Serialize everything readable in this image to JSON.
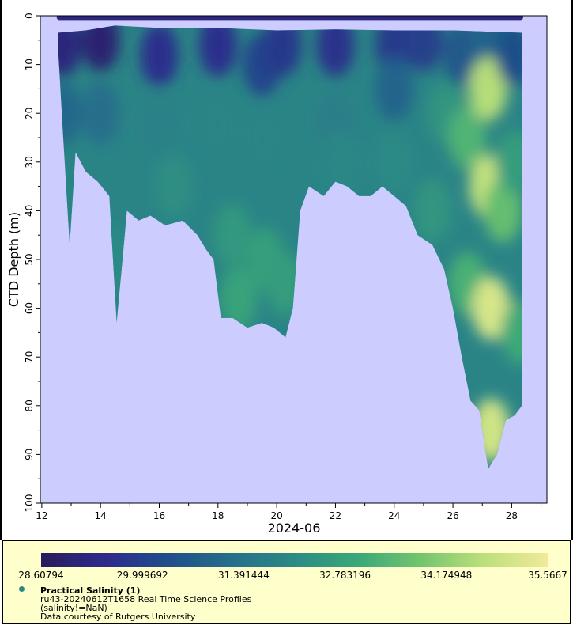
{
  "chart_data": {
    "type": "scatter",
    "ylabel": "CTD Depth (m)",
    "xlabel": "2024-06",
    "x_ticks": [
      "12",
      "14",
      "16",
      "18",
      "20",
      "22",
      "24",
      "26",
      "28"
    ],
    "y_ticks": [
      "0",
      "10",
      "20",
      "30",
      "40",
      "50",
      "60",
      "70",
      "80",
      "90",
      "100"
    ],
    "xlim": [
      11.95,
      29.2
    ],
    "ylim": [
      0,
      100
    ],
    "y_reversed": true,
    "plot_background": "#ccccff",
    "colorbar": {
      "variable": "Practical Salinity",
      "range": [
        28.60794,
        35.5667
      ],
      "tick_labels": [
        "28.60794",
        "29.999692",
        "31.391444",
        "32.783196",
        "34.174948",
        "35.5667"
      ],
      "colors": [
        "#281c5a",
        "#2e2a8c",
        "#1f4e8a",
        "#256f8b",
        "#2c8a85",
        "#3aa878",
        "#74c56e",
        "#bde07a",
        "#f0ea9a"
      ]
    },
    "profile_bottom_depth": [
      [
        12.55,
        6
      ],
      [
        12.75,
        27
      ],
      [
        12.95,
        47
      ],
      [
        13.15,
        28
      ],
      [
        13.5,
        32
      ],
      [
        13.9,
        34
      ],
      [
        14.3,
        37
      ],
      [
        14.55,
        63
      ],
      [
        14.9,
        40
      ],
      [
        15.3,
        42
      ],
      [
        15.7,
        41
      ],
      [
        16.2,
        43
      ],
      [
        16.8,
        42
      ],
      [
        17.3,
        45
      ],
      [
        17.6,
        48
      ],
      [
        17.85,
        50
      ],
      [
        18.1,
        62
      ],
      [
        18.5,
        62
      ],
      [
        19.0,
        64
      ],
      [
        19.5,
        63
      ],
      [
        19.9,
        64
      ],
      [
        20.3,
        66
      ],
      [
        20.55,
        60
      ],
      [
        20.8,
        40
      ],
      [
        21.1,
        35
      ],
      [
        21.6,
        37
      ],
      [
        22.0,
        34
      ],
      [
        22.4,
        35
      ],
      [
        22.8,
        37
      ],
      [
        23.2,
        37
      ],
      [
        23.6,
        35
      ],
      [
        24.0,
        37
      ],
      [
        24.4,
        39
      ],
      [
        24.8,
        45
      ],
      [
        25.3,
        47
      ],
      [
        25.7,
        52
      ],
      [
        26.0,
        60
      ],
      [
        26.3,
        70
      ],
      [
        26.6,
        79
      ],
      [
        26.9,
        81
      ],
      [
        27.2,
        93
      ],
      [
        27.5,
        90
      ],
      [
        27.8,
        83
      ],
      [
        28.1,
        82
      ],
      [
        28.35,
        80
      ]
    ],
    "profile_top_depth": [
      [
        12.55,
        3.5
      ],
      [
        13.5,
        3
      ],
      [
        14.5,
        2
      ],
      [
        16,
        2.5
      ],
      [
        18,
        2.5
      ],
      [
        20,
        3
      ],
      [
        22,
        2.8
      ],
      [
        24,
        3
      ],
      [
        26,
        3
      ],
      [
        28.35,
        3.5
      ]
    ],
    "surface_depth": 0.3,
    "surface_x_range": [
      12.6,
      28.3
    ],
    "salinity_points": [
      [
        12.7,
        6,
        29.2
      ],
      [
        12.7,
        20,
        31.0
      ],
      [
        12.9,
        40,
        31.9
      ],
      [
        14.0,
        5,
        29.0
      ],
      [
        14.0,
        20,
        31.2
      ],
      [
        14.6,
        50,
        32.1
      ],
      [
        16.0,
        8,
        29.6
      ],
      [
        16.0,
        22,
        31.8
      ],
      [
        16.5,
        35,
        32.2
      ],
      [
        18.0,
        6,
        29.6
      ],
      [
        18.0,
        22,
        31.9
      ],
      [
        18.5,
        45,
        32.5
      ],
      [
        18.7,
        58,
        32.8
      ],
      [
        19.5,
        10,
        30.1
      ],
      [
        19.5,
        25,
        31.9
      ],
      [
        19.6,
        50,
        32.7
      ],
      [
        20.2,
        6,
        29.8
      ],
      [
        20.3,
        55,
        32.6
      ],
      [
        22.0,
        6,
        29.7
      ],
      [
        22.0,
        22,
        31.7
      ],
      [
        22.2,
        30,
        32.0
      ],
      [
        24.0,
        6,
        29.9
      ],
      [
        24.0,
        15,
        30.9
      ],
      [
        24.0,
        30,
        32.1
      ],
      [
        25.0,
        5,
        30.0
      ],
      [
        25.3,
        40,
        32.4
      ],
      [
        25.8,
        20,
        32.4
      ],
      [
        26.3,
        8,
        30.6
      ],
      [
        26.5,
        25,
        33.3
      ],
      [
        26.5,
        55,
        33.2
      ],
      [
        27.2,
        5,
        30.9
      ],
      [
        27.2,
        15,
        34.6
      ],
      [
        27.2,
        35,
        34.8
      ],
      [
        27.3,
        60,
        35.1
      ],
      [
        27.3,
        85,
        35.0
      ],
      [
        27.7,
        40,
        33.6
      ],
      [
        28.1,
        8,
        30.4
      ],
      [
        28.1,
        30,
        32.6
      ],
      [
        28.3,
        65,
        33.0
      ]
    ]
  },
  "legend": {
    "title": "Practical Salinity (1)",
    "line2": "ru43-20240612T1658 Real Time Science Profiles",
    "line3": "(salinity!=NaN)",
    "line4": "Data courtesy of Rutgers University"
  }
}
